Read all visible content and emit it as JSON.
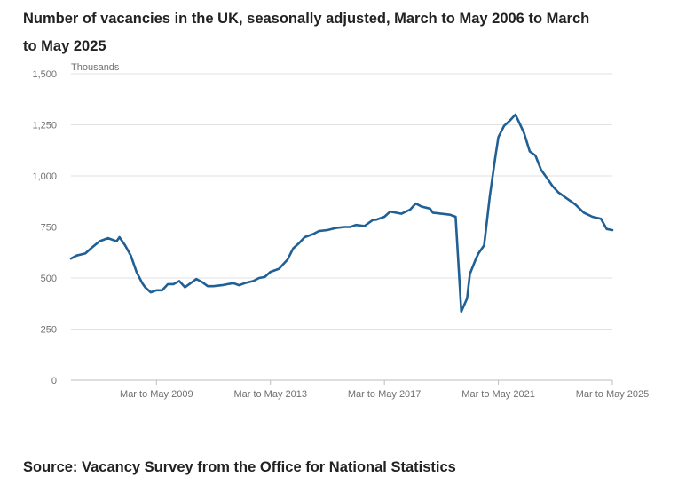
{
  "title": "Number of vacancies in the UK, seasonally adjusted, March to May 2006 to March to May 2025",
  "source": "Source: Vacancy Survey from the Office for National Statistics",
  "colors": {
    "line": "#206095",
    "grid": "#e2e2e3",
    "axis": "#bebebe",
    "text": "#707071"
  },
  "chart_data": {
    "type": "line",
    "title": "Number of vacancies in the UK, seasonally adjusted, March to May 2006 to March to May 2025",
    "ylabel": "Thousands",
    "xlabel": "",
    "ylim": [
      0,
      1500
    ],
    "xlim": [
      2006.3,
      2025.3
    ],
    "yticks": [
      0,
      250,
      500,
      750,
      1000,
      1250,
      1500
    ],
    "ytick_labels": [
      "0",
      "250",
      "500",
      "750",
      "1,000",
      "1,250",
      "1,500"
    ],
    "xticks": [
      2009.3,
      2013.3,
      2017.3,
      2021.3,
      2025.3
    ],
    "xtick_labels": [
      "Mar to May 2009",
      "Mar to May 2013",
      "Mar to May 2017",
      "Mar to May 2021",
      "Mar to May 2025"
    ],
    "grid": true,
    "legend": "none",
    "series": [
      {
        "x": [
          2006.3,
          2006.5,
          2006.8,
          2007.0,
          2007.3,
          2007.6,
          2007.9,
          2008.0,
          2008.2,
          2008.4,
          2008.6,
          2008.8,
          2008.9,
          2009.1,
          2009.3,
          2009.5,
          2009.7,
          2009.9,
          2010.1,
          2010.3,
          2010.5,
          2010.7,
          2010.9,
          2011.1,
          2011.3,
          2011.6,
          2011.8,
          2012.0,
          2012.2,
          2012.4,
          2012.7,
          2012.9,
          2013.1,
          2013.3,
          2013.6,
          2013.9,
          2014.1,
          2014.3,
          2014.5,
          2014.8,
          2015.0,
          2015.3,
          2015.6,
          2015.9,
          2016.1,
          2016.3,
          2016.6,
          2016.9,
          2017.0,
          2017.3,
          2017.5,
          2017.7,
          2017.9,
          2018.2,
          2018.4,
          2018.6,
          2018.9,
          2019.0,
          2019.3,
          2019.6,
          2019.8,
          2020.0,
          2020.2,
          2020.3,
          2020.5,
          2020.6,
          2020.8,
          2021.0,
          2021.2,
          2021.3,
          2021.5,
          2021.7,
          2021.9,
          2022.0,
          2022.2,
          2022.4,
          2022.6,
          2022.8,
          2023.0,
          2023.2,
          2023.4,
          2023.7,
          2024.0,
          2024.3,
          2024.6,
          2024.9,
          2025.1,
          2025.3
        ],
        "values": [
          595,
          610,
          620,
          645,
          680,
          695,
          680,
          700,
          660,
          610,
          530,
          475,
          455,
          430,
          440,
          440,
          470,
          470,
          485,
          455,
          475,
          495,
          480,
          460,
          460,
          465,
          470,
          475,
          465,
          475,
          485,
          500,
          505,
          530,
          545,
          590,
          645,
          670,
          700,
          715,
          730,
          735,
          745,
          750,
          750,
          760,
          755,
          785,
          785,
          800,
          825,
          820,
          815,
          835,
          865,
          850,
          840,
          820,
          815,
          810,
          800,
          335,
          400,
          520,
          590,
          620,
          660,
          900,
          1100,
          1190,
          1245,
          1270,
          1300,
          1270,
          1210,
          1120,
          1100,
          1030,
          990,
          950,
          920,
          890,
          860,
          820,
          800,
          790,
          740,
          735
        ]
      }
    ]
  }
}
